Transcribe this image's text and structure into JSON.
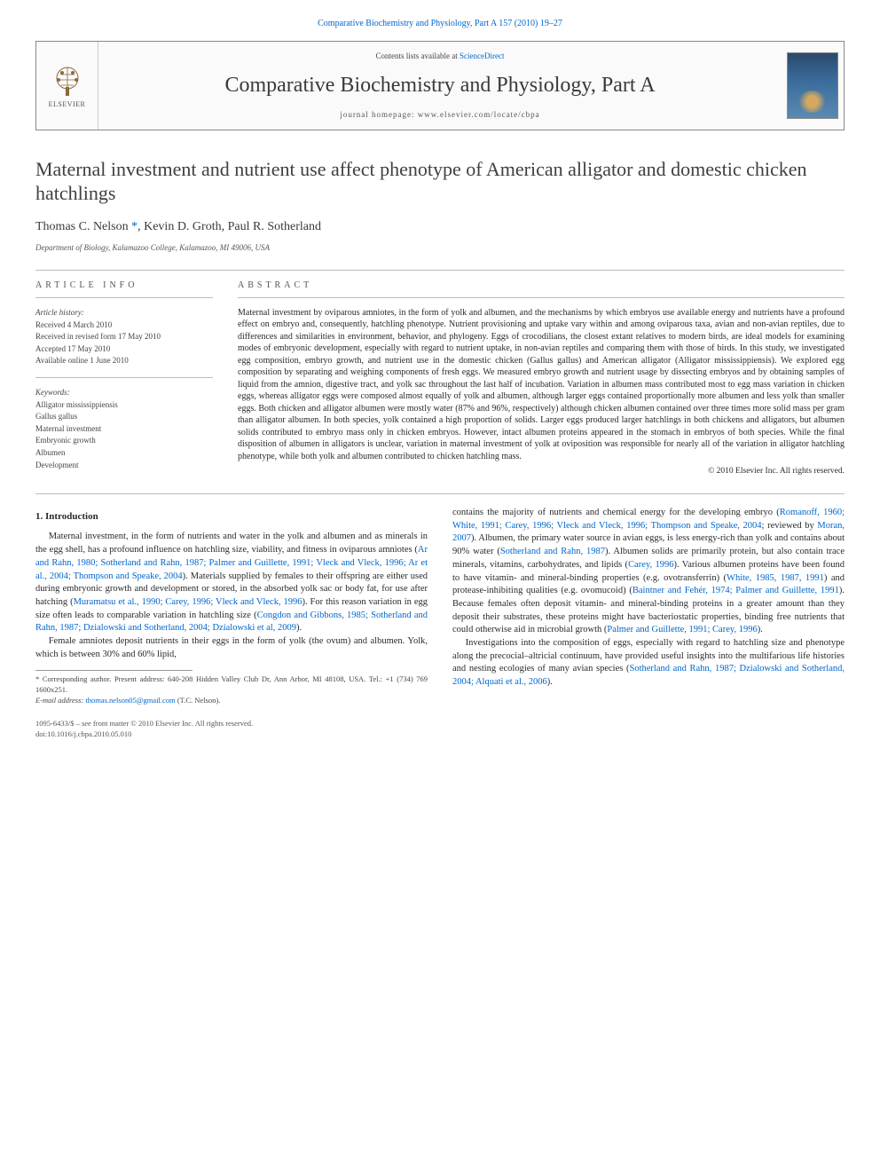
{
  "top_ref": "Comparative Biochemistry and Physiology, Part A 157 (2010) 19–27",
  "header": {
    "contents_prefix": "Contents lists available at ",
    "contents_link": "ScienceDirect",
    "journal_title": "Comparative Biochemistry and Physiology, Part A",
    "homepage_prefix": "journal homepage: ",
    "homepage_url": "www.elsevier.com/locate/cbpa",
    "publisher": "ELSEVIER"
  },
  "article": {
    "title": "Maternal investment and nutrient use affect phenotype of American alligator and domestic chicken hatchlings",
    "authors_html": "Thomas C. Nelson <span class='corr'>*</span>, Kevin D. Groth, Paul R. Sotherland",
    "affiliation": "Department of Biology, Kalamazoo College, Kalamazoo, MI 49006, USA"
  },
  "info": {
    "heading": "ARTICLE INFO",
    "history_label": "Article history:",
    "received": "Received 4 March 2010",
    "revised": "Received in revised form 17 May 2010",
    "accepted": "Accepted 17 May 2010",
    "online": "Available online 1 June 2010",
    "keywords_label": "Keywords:",
    "keywords": [
      "Alligator mississippiensis",
      "Gallus gallus",
      "Maternal investment",
      "Embryonic growth",
      "Albumen",
      "Development"
    ]
  },
  "abstract": {
    "heading": "ABSTRACT",
    "text": "Maternal investment by oviparous amniotes, in the form of yolk and albumen, and the mechanisms by which embryos use available energy and nutrients have a profound effect on embryo and, consequently, hatchling phenotype. Nutrient provisioning and uptake vary within and among oviparous taxa, avian and non-avian reptiles, due to differences and similarities in environment, behavior, and phylogeny. Eggs of crocodilians, the closest extant relatives to modern birds, are ideal models for examining modes of embryonic development, especially with regard to nutrient uptake, in non-avian reptiles and comparing them with those of birds. In this study, we investigated egg composition, embryo growth, and nutrient use in the domestic chicken (Gallus gallus) and American alligator (Alligator mississippiensis). We explored egg composition by separating and weighing components of fresh eggs. We measured embryo growth and nutrient usage by dissecting embryos and by obtaining samples of liquid from the amnion, digestive tract, and yolk sac throughout the last half of incubation. Variation in albumen mass contributed most to egg mass variation in chicken eggs, whereas alligator eggs were composed almost equally of yolk and albumen, although larger eggs contained proportionally more albumen and less yolk than smaller eggs. Both chicken and alligator albumen were mostly water (87% and 96%, respectively) although chicken albumen contained over three times more solid mass per gram than alligator albumen. In both species, yolk contained a high proportion of solids. Larger eggs produced larger hatchlings in both chickens and alligators, but albumen solids contributed to embryo mass only in chicken embryos. However, intact albumen proteins appeared in the stomach in embryos of both species. While the final disposition of albumen in alligators is unclear, variation in maternal investment of yolk at oviposition was responsible for nearly all of the variation in alligator hatchling phenotype, while both yolk and albumen contributed to chicken hatchling mass.",
    "copyright": "© 2010 Elsevier Inc. All rights reserved."
  },
  "body": {
    "section1_heading": "1. Introduction",
    "p1a": "Maternal investment, in the form of nutrients and water in the yolk and albumen and as minerals in the egg shell, has a profound influence on hatchling size, viability, and fitness in oviparous amniotes (",
    "p1_ref1": "Ar and Rahn, 1980; Sotherland and Rahn, 1987; Palmer and Guillette, 1991; Vleck and Vleck, 1996; Ar et al., 2004; Thompson and Speake, 2004",
    "p1b": "). Materials supplied by females to their offspring are either used during embryonic growth and development or stored, in the absorbed yolk sac or body fat, for use after hatching (",
    "p1_ref2": "Muramatsu et al., 1990; Carey, 1996; Vleck and Vleck, 1996",
    "p1c": "). For this reason variation in egg size often leads to comparable variation in hatchling size (",
    "p1_ref3": "Congdon and Gibbons, 1985; Sotherland and Rahn, 1987; Dzialowski and Sotherland, 2004; Dzialowski et al, 2009",
    "p1d": ").",
    "p2a": "Female amniotes deposit nutrients in their eggs in the form of yolk (the ovum) and albumen. Yolk, which is between 30% and 60% lipid,",
    "p3a": "contains the majority of nutrients and chemical energy for the developing embryo (",
    "p3_ref1": "Romanoff, 1960; White, 1991; Carey, 1996; Vleck and Vleck, 1996; Thompson and Speake, 2004",
    "p3b": "; reviewed by ",
    "p3_ref2": "Moran, 2007",
    "p3c": "). Albumen, the primary water source in avian eggs, is less energy-rich than yolk and contains about 90% water (",
    "p3_ref3": "Sotherland and Rahn, 1987",
    "p3d": "). Albumen solids are primarily protein, but also contain trace minerals, vitamins, carbohydrates, and lipids (",
    "p3_ref4": "Carey, 1996",
    "p3e": "). Various albumen proteins have been found to have vitamin- and mineral-binding properties (e.g. ovotransferrin) (",
    "p3_ref5": "White, 1985, 1987, 1991",
    "p3f": ") and protease-inhibiting qualities (e.g. ovomucoid) (",
    "p3_ref6": "Baintner and Fehér, 1974; Palmer and Guillette, 1991",
    "p3g": "). Because females often deposit vitamin- and mineral-binding proteins in a greater amount than they deposit their substrates, these proteins might have bacteriostatic properties, binding free nutrients that could otherwise aid in microbial growth (",
    "p3_ref7": "Palmer and Guillette, 1991; Carey, 1996",
    "p3h": ").",
    "p4a": "Investigations into the composition of eggs, especially with regard to hatchling size and phenotype along the precocial–altricial continuum, have provided useful insights into the multifarious life histories and nesting ecologies of many avian species (",
    "p4_ref1": "Sotherland and Rahn, 1987; Dzialowski and Sotherland, 2004; Alquati et al., 2006",
    "p4b": ")."
  },
  "footnote": {
    "corr_label": "* Corresponding author. Present address: 640-208 Hidden Valley Club Dr, Ann Arbor, MI 48108, USA. Tel.: +1 (734) 769 1600x251.",
    "email_label": "E-mail address: ",
    "email": "thomas.nelson05@gmail.com",
    "email_suffix": " (T.C. Nelson)."
  },
  "footer": {
    "issn": "1095-6433/$ – see front matter © 2010 Elsevier Inc. All rights reserved.",
    "doi": "doi:10.1016/j.cbpa.2010.05.010"
  },
  "colors": {
    "link": "#0066cc",
    "text": "#2a2a2a",
    "muted": "#555555",
    "rule": "#bbbbbb"
  }
}
